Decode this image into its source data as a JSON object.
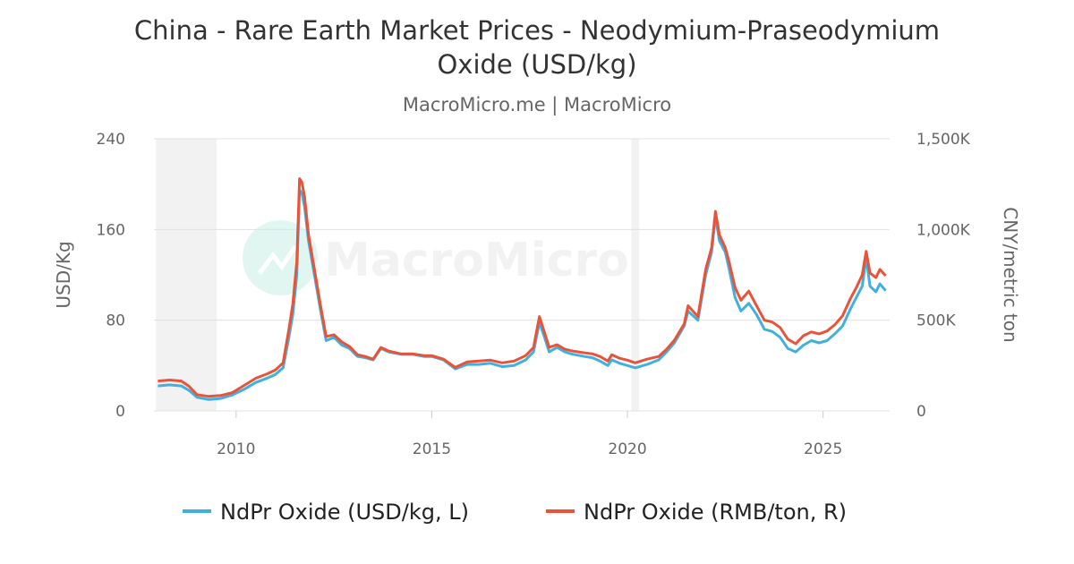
{
  "chart_data": {
    "type": "line",
    "title": "China - Rare Earth Market Prices - Neodymium-Praseodymium Oxide (USD/kg)",
    "title_lines": [
      "China - Rare Earth Market Prices - Neodymium-Praseodymium",
      "Oxide (USD/kg)"
    ],
    "subtitle": "MacroMicro.me | MacroMicro",
    "watermark": "MacroMicro",
    "y_left": {
      "label": "USD/Kg",
      "min": 0,
      "max": 240,
      "ticks": [
        0,
        80,
        160,
        240
      ]
    },
    "y_right": {
      "label": "CNY/metric ton",
      "min": 0,
      "max": 1500000,
      "ticks": [
        "0",
        "500K",
        "1,000K",
        "1,500K"
      ]
    },
    "x_axis": {
      "min": 2007.9,
      "max": 2026.7,
      "ticks": [
        "2010",
        "2015",
        "2020",
        "2025"
      ]
    },
    "shaded_periods": [
      [
        2007.95,
        2009.5
      ],
      [
        2020.1,
        2020.3
      ]
    ],
    "legend_position": "bottom",
    "grid": true,
    "series": [
      {
        "name": "NdPr Oxide (USD/kg, L)",
        "axis": "left",
        "color": "#42b0df",
        "points": [
          [
            2008.0,
            22
          ],
          [
            2008.3,
            23
          ],
          [
            2008.6,
            22
          ],
          [
            2008.8,
            18
          ],
          [
            2009.0,
            12
          ],
          [
            2009.3,
            10
          ],
          [
            2009.6,
            11
          ],
          [
            2009.9,
            14
          ],
          [
            2010.2,
            19
          ],
          [
            2010.5,
            25
          ],
          [
            2010.8,
            29
          ],
          [
            2011.0,
            32
          ],
          [
            2011.2,
            38
          ],
          [
            2011.35,
            65
          ],
          [
            2011.45,
            85
          ],
          [
            2011.55,
            120
          ],
          [
            2011.62,
            195
          ],
          [
            2011.68,
            192
          ],
          [
            2011.75,
            180
          ],
          [
            2011.85,
            150
          ],
          [
            2012.0,
            120
          ],
          [
            2012.15,
            90
          ],
          [
            2012.3,
            62
          ],
          [
            2012.5,
            65
          ],
          [
            2012.7,
            58
          ],
          [
            2012.9,
            55
          ],
          [
            2013.1,
            48
          ],
          [
            2013.3,
            47
          ],
          [
            2013.5,
            45
          ],
          [
            2013.7,
            55
          ],
          [
            2013.9,
            52
          ],
          [
            2014.2,
            50
          ],
          [
            2014.5,
            50
          ],
          [
            2014.8,
            48
          ],
          [
            2015.0,
            48
          ],
          [
            2015.3,
            45
          ],
          [
            2015.6,
            37
          ],
          [
            2015.9,
            41
          ],
          [
            2016.2,
            41
          ],
          [
            2016.5,
            42
          ],
          [
            2016.8,
            39
          ],
          [
            2017.1,
            40
          ],
          [
            2017.4,
            45
          ],
          [
            2017.6,
            52
          ],
          [
            2017.75,
            78
          ],
          [
            2017.9,
            63
          ],
          [
            2018.0,
            52
          ],
          [
            2018.2,
            56
          ],
          [
            2018.4,
            52
          ],
          [
            2018.6,
            50
          ],
          [
            2018.9,
            48
          ],
          [
            2019.1,
            47
          ],
          [
            2019.3,
            44
          ],
          [
            2019.5,
            40
          ],
          [
            2019.6,
            45
          ],
          [
            2019.8,
            42
          ],
          [
            2020.0,
            40
          ],
          [
            2020.2,
            38
          ],
          [
            2020.5,
            41
          ],
          [
            2020.8,
            45
          ],
          [
            2021.0,
            52
          ],
          [
            2021.2,
            60
          ],
          [
            2021.45,
            75
          ],
          [
            2021.55,
            88
          ],
          [
            2021.8,
            80
          ],
          [
            2022.0,
            120
          ],
          [
            2022.15,
            140
          ],
          [
            2022.25,
            172
          ],
          [
            2022.35,
            150
          ],
          [
            2022.5,
            140
          ],
          [
            2022.6,
            125
          ],
          [
            2022.75,
            100
          ],
          [
            2022.9,
            88
          ],
          [
            2023.1,
            95
          ],
          [
            2023.3,
            85
          ],
          [
            2023.5,
            72
          ],
          [
            2023.7,
            70
          ],
          [
            2023.9,
            65
          ],
          [
            2024.1,
            55
          ],
          [
            2024.3,
            52
          ],
          [
            2024.5,
            58
          ],
          [
            2024.7,
            62
          ],
          [
            2024.9,
            60
          ],
          [
            2025.1,
            62
          ],
          [
            2025.3,
            68
          ],
          [
            2025.5,
            75
          ],
          [
            2025.7,
            90
          ],
          [
            2025.85,
            100
          ],
          [
            2026.0,
            110
          ],
          [
            2026.1,
            135
          ],
          [
            2026.2,
            110
          ],
          [
            2026.35,
            105
          ],
          [
            2026.45,
            112
          ],
          [
            2026.6,
            106
          ]
        ]
      },
      {
        "name": "NdPr Oxide (RMB/ton, R)",
        "axis": "right",
        "color": "#e8533a",
        "points": [
          [
            2008.0,
            165000
          ],
          [
            2008.3,
            170000
          ],
          [
            2008.6,
            165000
          ],
          [
            2008.8,
            135000
          ],
          [
            2009.0,
            90000
          ],
          [
            2009.3,
            80000
          ],
          [
            2009.6,
            85000
          ],
          [
            2009.9,
            100000
          ],
          [
            2010.2,
            140000
          ],
          [
            2010.5,
            180000
          ],
          [
            2010.8,
            205000
          ],
          [
            2011.0,
            225000
          ],
          [
            2011.2,
            265000
          ],
          [
            2011.35,
            450000
          ],
          [
            2011.45,
            590000
          ],
          [
            2011.55,
            820000
          ],
          [
            2011.62,
            1280000
          ],
          [
            2011.68,
            1260000
          ],
          [
            2011.75,
            1180000
          ],
          [
            2011.85,
            970000
          ],
          [
            2012.0,
            780000
          ],
          [
            2012.15,
            590000
          ],
          [
            2012.3,
            410000
          ],
          [
            2012.5,
            420000
          ],
          [
            2012.7,
            380000
          ],
          [
            2012.9,
            355000
          ],
          [
            2013.1,
            310000
          ],
          [
            2013.3,
            300000
          ],
          [
            2013.5,
            285000
          ],
          [
            2013.7,
            350000
          ],
          [
            2013.9,
            330000
          ],
          [
            2014.2,
            315000
          ],
          [
            2014.5,
            315000
          ],
          [
            2014.8,
            305000
          ],
          [
            2015.0,
            305000
          ],
          [
            2015.3,
            285000
          ],
          [
            2015.6,
            240000
          ],
          [
            2015.9,
            270000
          ],
          [
            2016.2,
            275000
          ],
          [
            2016.5,
            280000
          ],
          [
            2016.8,
            265000
          ],
          [
            2017.1,
            275000
          ],
          [
            2017.4,
            305000
          ],
          [
            2017.6,
            350000
          ],
          [
            2017.75,
            520000
          ],
          [
            2017.9,
            420000
          ],
          [
            2018.0,
            350000
          ],
          [
            2018.2,
            365000
          ],
          [
            2018.4,
            340000
          ],
          [
            2018.6,
            330000
          ],
          [
            2018.9,
            320000
          ],
          [
            2019.1,
            315000
          ],
          [
            2019.3,
            300000
          ],
          [
            2019.5,
            275000
          ],
          [
            2019.6,
            310000
          ],
          [
            2019.8,
            290000
          ],
          [
            2020.0,
            280000
          ],
          [
            2020.2,
            265000
          ],
          [
            2020.5,
            285000
          ],
          [
            2020.8,
            300000
          ],
          [
            2021.0,
            340000
          ],
          [
            2021.2,
            390000
          ],
          [
            2021.45,
            480000
          ],
          [
            2021.55,
            580000
          ],
          [
            2021.8,
            520000
          ],
          [
            2022.0,
            780000
          ],
          [
            2022.15,
            900000
          ],
          [
            2022.25,
            1100000
          ],
          [
            2022.35,
            970000
          ],
          [
            2022.5,
            900000
          ],
          [
            2022.6,
            820000
          ],
          [
            2022.75,
            680000
          ],
          [
            2022.9,
            610000
          ],
          [
            2023.1,
            660000
          ],
          [
            2023.3,
            580000
          ],
          [
            2023.5,
            500000
          ],
          [
            2023.7,
            490000
          ],
          [
            2023.9,
            460000
          ],
          [
            2024.1,
            395000
          ],
          [
            2024.3,
            370000
          ],
          [
            2024.5,
            415000
          ],
          [
            2024.7,
            435000
          ],
          [
            2024.9,
            425000
          ],
          [
            2025.1,
            440000
          ],
          [
            2025.3,
            475000
          ],
          [
            2025.5,
            525000
          ],
          [
            2025.7,
            620000
          ],
          [
            2025.85,
            680000
          ],
          [
            2026.0,
            750000
          ],
          [
            2026.1,
            880000
          ],
          [
            2026.2,
            760000
          ],
          [
            2026.35,
            735000
          ],
          [
            2026.45,
            780000
          ],
          [
            2026.6,
            745000
          ]
        ]
      }
    ]
  }
}
